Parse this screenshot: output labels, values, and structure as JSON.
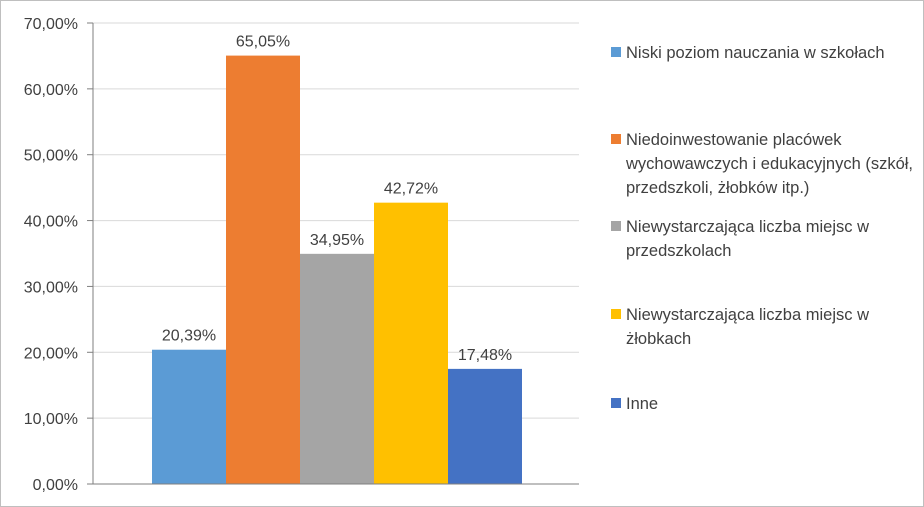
{
  "chart_data": {
    "type": "bar",
    "categories": [
      "Niski poziom nauczania w szkołach",
      "Niedoinwestowanie placówek wychowawczych i edukacyjnych (szkół, przedszkoli, żłobków itp.)",
      "Niewystarczająca liczba miejsc w przedszkolach",
      "Niewystarczająca liczba miejsc w żłobkach",
      "Inne"
    ],
    "values": [
      20.39,
      65.05,
      34.95,
      42.72,
      17.48
    ],
    "data_labels": [
      "20,39%",
      "65,05%",
      "34,95%",
      "42,72%",
      "17,48%"
    ],
    "colors": [
      "#5b9bd5",
      "#ed7d31",
      "#a5a5a5",
      "#ffc000",
      "#4472c4"
    ],
    "ylim": [
      0,
      70
    ],
    "yticks": [
      0,
      10,
      20,
      30,
      40,
      50,
      60,
      70
    ],
    "ytick_labels": [
      "0,00%",
      "10,00%",
      "20,00%",
      "30,00%",
      "40,00%",
      "50,00%",
      "60,00%",
      "70,00%"
    ],
    "grid": true,
    "legend_position": "right",
    "title": "",
    "xlabel": "",
    "ylabel": ""
  }
}
